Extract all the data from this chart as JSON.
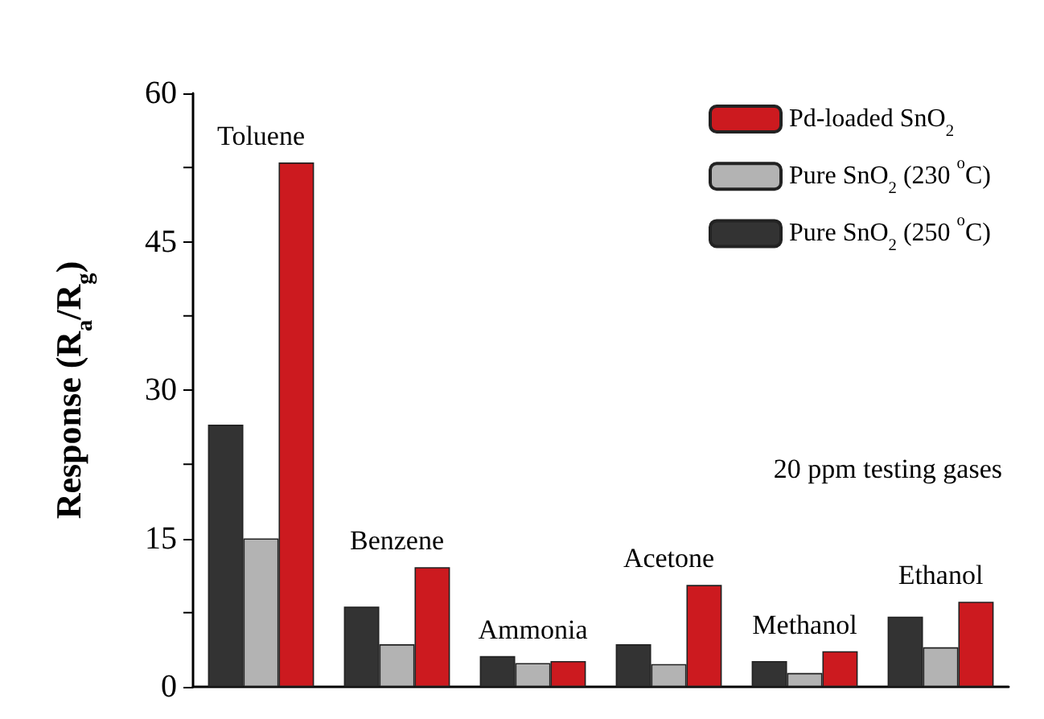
{
  "chart_data": {
    "type": "bar",
    "ylabel": "Response (R$_{a}$/R$_{g}$)",
    "categories": [
      "Toluene",
      "Benzene",
      "Ammonia",
      "Acetone",
      "Methanol",
      "Ethanol"
    ],
    "series": [
      {
        "name": "Pure SnO$_{2}$ (250 $^{o}$C)",
        "color": "#333333",
        "values": [
          26.5,
          8.1,
          3.1,
          4.3,
          2.6,
          7.1
        ]
      },
      {
        "name": "Pure SnO$_{2}$ (230 $^{o}$C)",
        "color": "#b3b3b3",
        "values": [
          15,
          4.3,
          2.4,
          2.3,
          1.4,
          4.0
        ]
      },
      {
        "name": "Pd-loaded SnO$_{2}$",
        "color": "#cc1a1f",
        "values": [
          53,
          12.1,
          2.6,
          10.3,
          3.6,
          8.6
        ]
      }
    ],
    "ylim": [
      0,
      60
    ],
    "yticks": [
      0,
      15,
      30,
      45,
      60
    ],
    "grid": false,
    "legend": "top right",
    "tick_labels": "y",
    "annotations": [
      "20 ppm testing gases"
    ]
  }
}
